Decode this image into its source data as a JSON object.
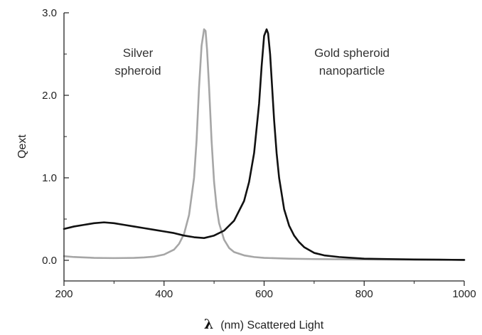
{
  "chart_data": {
    "type": "line",
    "title": "",
    "xlabel_symbol": "λ",
    "xlabel": "(nm) Scattered Light",
    "ylabel": "Qext",
    "xlim": [
      200,
      1000
    ],
    "ylim": [
      -0.25,
      3.0
    ],
    "x_ticks": [
      200,
      400,
      600,
      800,
      1000
    ],
    "x_tick_labels": [
      "200",
      "400",
      "600",
      "800",
      "1000"
    ],
    "y_ticks": [
      0.0,
      1.0,
      2.0,
      3.0
    ],
    "y_tick_labels": [
      "0.0",
      "1.0",
      "2.0",
      "3.0"
    ],
    "grid": false,
    "legend": "none",
    "annotations": [
      {
        "lines": [
          "Silver",
          "spheroid"
        ]
      },
      {
        "lines": [
          "Gold spheroid",
          "nanoparticle"
        ]
      }
    ],
    "series": [
      {
        "color": "#a6a6a6",
        "x": [
          200,
          220,
          240,
          260,
          280,
          300,
          320,
          340,
          360,
          380,
          400,
          420,
          430,
          440,
          450,
          460,
          465,
          470,
          475,
          480,
          483,
          486,
          490,
          495,
          500,
          505,
          510,
          520,
          530,
          540,
          560,
          580,
          600,
          650,
          700,
          800,
          900,
          1000
        ],
        "y": [
          0.05,
          0.04,
          0.035,
          0.03,
          0.028,
          0.027,
          0.028,
          0.03,
          0.035,
          0.045,
          0.07,
          0.13,
          0.2,
          0.32,
          0.55,
          1.0,
          1.45,
          2.1,
          2.6,
          2.8,
          2.78,
          2.55,
          2.1,
          1.45,
          0.95,
          0.65,
          0.45,
          0.25,
          0.15,
          0.1,
          0.06,
          0.04,
          0.03,
          0.02,
          0.015,
          0.01,
          0.008,
          0.005
        ]
      },
      {
        "color": "#111111",
        "x": [
          200,
          220,
          240,
          260,
          280,
          300,
          320,
          340,
          360,
          380,
          400,
          420,
          440,
          460,
          480,
          500,
          520,
          540,
          560,
          570,
          580,
          590,
          595,
          600,
          605,
          608,
          612,
          615,
          620,
          625,
          630,
          640,
          650,
          660,
          670,
          680,
          700,
          720,
          750,
          800,
          850,
          900,
          950,
          1000
        ],
        "y": [
          0.38,
          0.41,
          0.43,
          0.45,
          0.46,
          0.45,
          0.43,
          0.41,
          0.39,
          0.37,
          0.35,
          0.33,
          0.3,
          0.28,
          0.27,
          0.3,
          0.36,
          0.48,
          0.72,
          0.95,
          1.3,
          1.9,
          2.35,
          2.72,
          2.8,
          2.75,
          2.5,
          2.2,
          1.7,
          1.3,
          1.0,
          0.62,
          0.42,
          0.3,
          0.22,
          0.16,
          0.09,
          0.06,
          0.04,
          0.02,
          0.015,
          0.01,
          0.008,
          0.005
        ]
      }
    ]
  }
}
